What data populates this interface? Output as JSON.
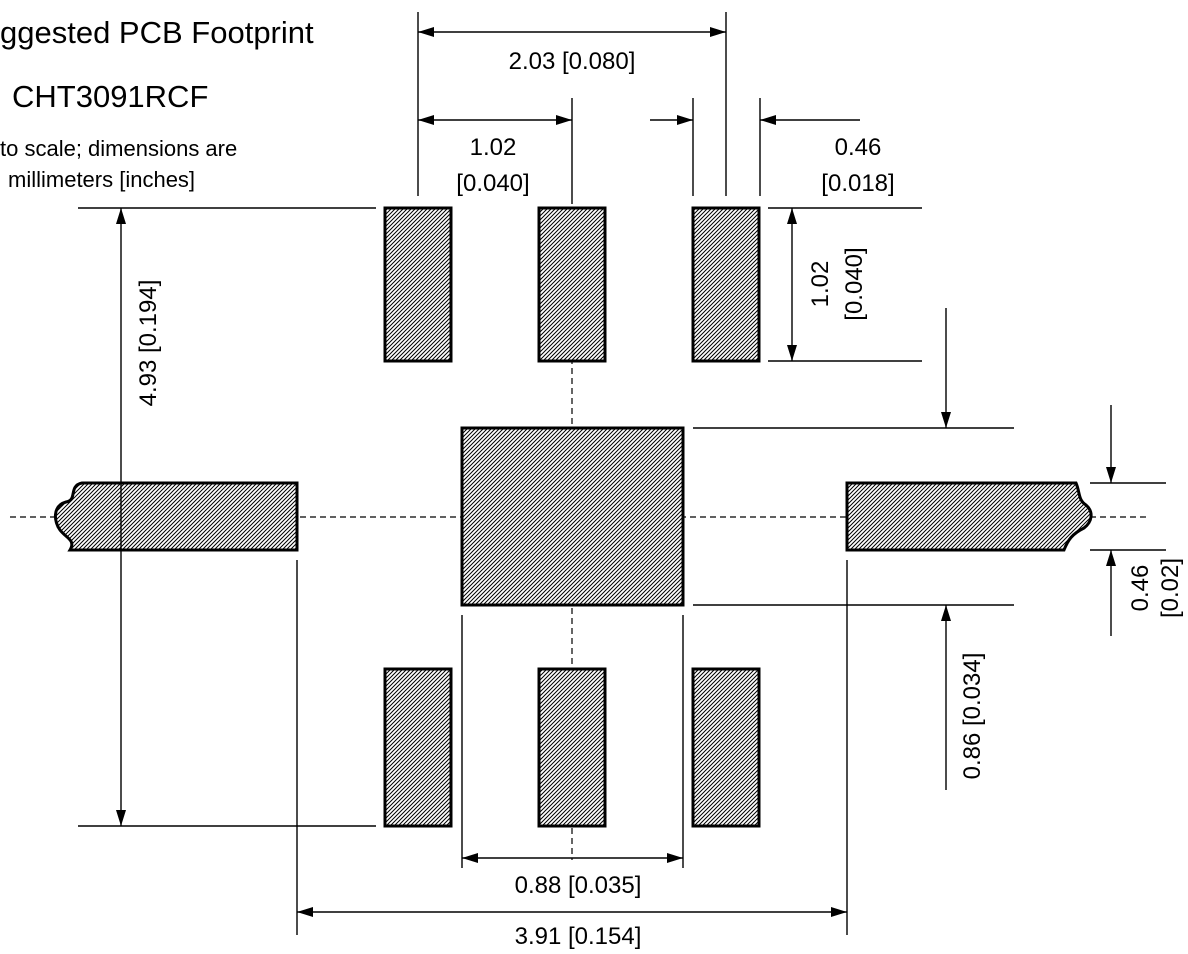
{
  "title": {
    "line1": "ggested PCB Footprint",
    "line2": "CHT3091RCF"
  },
  "note": {
    "line1": " to scale; dimensions are",
    "line2": "millimeters [inches]"
  },
  "dimensions": {
    "pitch_2x": "2.03 [0.080]",
    "pitch_mm": "1.02",
    "pitch_in": "[0.040]",
    "pad_width_mm": "0.46",
    "pad_width_in": "[0.018]",
    "pad_length_mm": "1.02",
    "pad_length_in": "[0.040]",
    "overall_height": "4.93 [0.194]",
    "center_pad_gap": "0.86 [0.034]",
    "side_pad_height_mm": "0.46",
    "side_pad_height_in": "[0.02]",
    "center_pad_width": "0.88 [0.035]",
    "overall_width": "3.91 [0.154]"
  },
  "colors": {
    "stroke": "#000000",
    "background": "#ffffff"
  }
}
